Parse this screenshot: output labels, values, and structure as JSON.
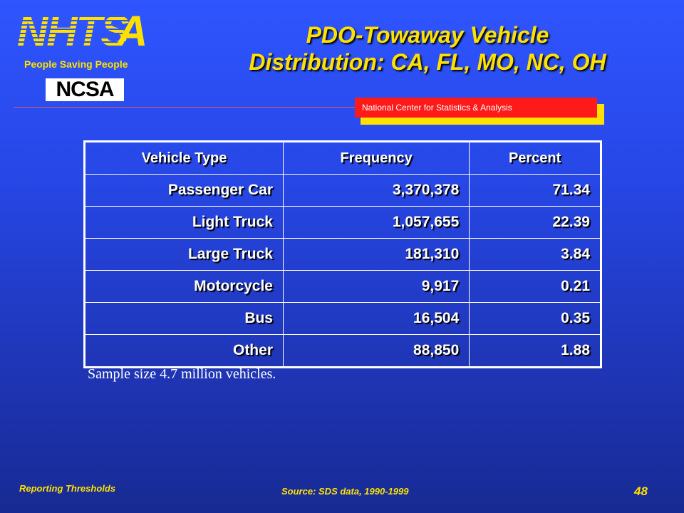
{
  "logo": {
    "primary_text": "NHTSA",
    "tagline": "People Saving People",
    "secondary_text": "NCSA"
  },
  "title": {
    "line1": "PDO-Towaway Vehicle",
    "line2": "Distribution: CA, FL, MO, NC, OH"
  },
  "banner": {
    "text": "National Center for Statistics & Analysis"
  },
  "table": {
    "headers": [
      "Vehicle Type",
      "Frequency",
      "Percent"
    ],
    "rows": [
      [
        "Passenger Car",
        "3,370,378",
        "71.34"
      ],
      [
        "Light Truck",
        "1,057,655",
        "22.39"
      ],
      [
        "Large Truck",
        "181,310",
        "3.84"
      ],
      [
        "Motorcycle",
        "9,917",
        "0.21"
      ],
      [
        "Bus",
        "16,504",
        "0.35"
      ],
      [
        "Other",
        "88,850",
        "1.88"
      ]
    ]
  },
  "note": "Sample size 4.7 million vehicles.",
  "footer": {
    "left": "Reporting Thresholds",
    "source": "Source: SDS data, 1990-1999",
    "page_number": "48"
  },
  "colors": {
    "background": "#2747e6",
    "accent_yellow": "#ffe100",
    "banner_red": "#ff1a1a"
  }
}
